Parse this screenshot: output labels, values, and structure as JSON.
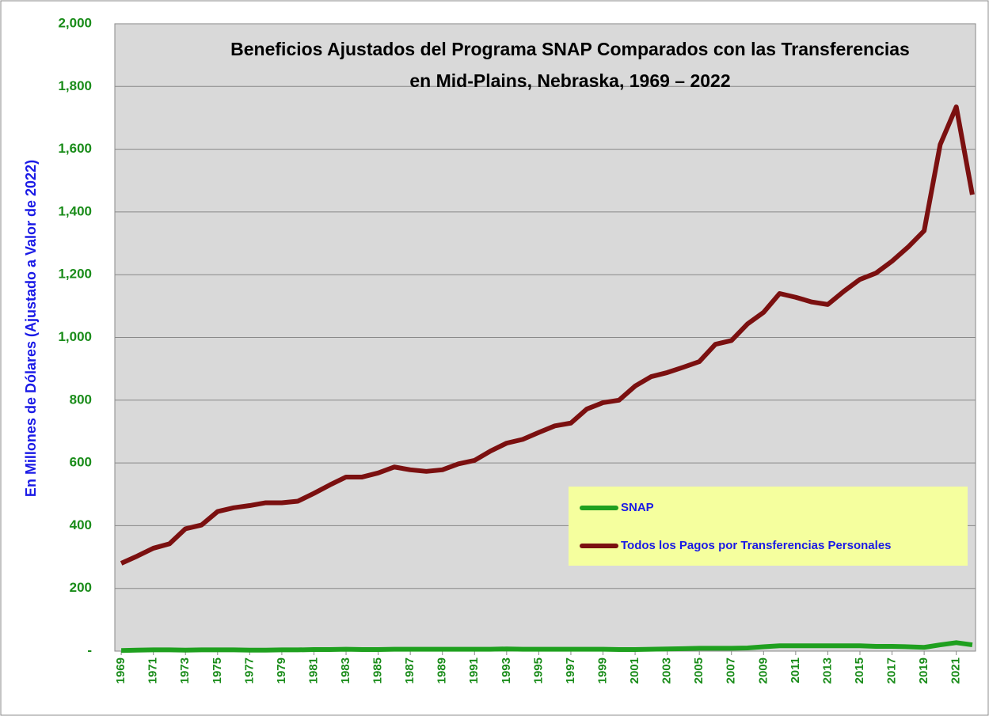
{
  "chart_data": {
    "type": "line",
    "title": "Beneficios Ajustados del Programa SNAP Comparados con las Transferencias en Mid-Plains, Nebraska, 1969 – 2022",
    "y_label": "En Millones de Dólares (Ajustado a Valor de 2022)",
    "x": [
      1969,
      1970,
      1971,
      1972,
      1973,
      1974,
      1975,
      1976,
      1977,
      1978,
      1979,
      1980,
      1981,
      1982,
      1983,
      1984,
      1985,
      1986,
      1987,
      1988,
      1989,
      1990,
      1991,
      1992,
      1993,
      1994,
      1995,
      1996,
      1997,
      1998,
      1999,
      2000,
      2001,
      2002,
      2003,
      2004,
      2005,
      2006,
      2007,
      2008,
      2009,
      2010,
      2011,
      2012,
      2013,
      2014,
      2015,
      2016,
      2017,
      2018,
      2019,
      2020,
      2021,
      2022
    ],
    "series": [
      {
        "name": "SNAP",
        "color": "#1fa01f",
        "values": [
          2,
          3,
          4,
          4,
          3,
          4,
          4,
          4,
          3,
          3,
          4,
          4,
          5,
          5,
          6,
          5,
          5,
          6,
          6,
          6,
          6,
          6,
          6,
          6,
          7,
          6,
          6,
          6,
          6,
          6,
          6,
          5,
          5,
          6,
          7,
          8,
          9,
          9,
          9,
          10,
          14,
          17,
          17,
          17,
          17,
          17,
          17,
          15,
          15,
          14,
          12,
          20,
          27,
          20
        ]
      },
      {
        "name": "Todos los Pagos por Transferencias Personales",
        "color": "#7b1010",
        "values": [
          280,
          303,
          328,
          342,
          390,
          402,
          445,
          457,
          464,
          473,
          473,
          478,
          503,
          530,
          555,
          555,
          568,
          587,
          578,
          573,
          578,
          597,
          608,
          638,
          663,
          675,
          697,
          718,
          727,
          772,
          792,
          800,
          845,
          875,
          888,
          905,
          923,
          978,
          990,
          1043,
          1080,
          1140,
          1128,
          1113,
          1105,
          1147,
          1185,
          1205,
          1243,
          1288,
          1340,
          1615,
          1735,
          1455
        ]
      }
    ],
    "xlim": [
      1968.6,
      2022.2
    ],
    "xticks": [
      1969,
      1971,
      1973,
      1975,
      1977,
      1979,
      1981,
      1983,
      1985,
      1987,
      1989,
      1991,
      1993,
      1995,
      1997,
      1999,
      2001,
      2003,
      2005,
      2007,
      2009,
      2011,
      2013,
      2015,
      2017,
      2019,
      2021
    ],
    "ylim": [
      0,
      2000
    ],
    "yticks": [
      {
        "value": 0,
        "label": "-"
      },
      200,
      400,
      600,
      800,
      {
        "value": 1000,
        "label": "1,000"
      },
      {
        "value": 1200,
        "label": "1,200"
      },
      {
        "value": 1400,
        "label": "1,400"
      },
      {
        "value": 1600,
        "label": "1,600"
      },
      {
        "value": 1800,
        "label": "1,800"
      },
      {
        "value": 2000,
        "label": "2,000"
      }
    ],
    "grid": true,
    "legend": "right",
    "plot_background": "#d9d9d9",
    "legend_background": "#f5ff9e"
  }
}
